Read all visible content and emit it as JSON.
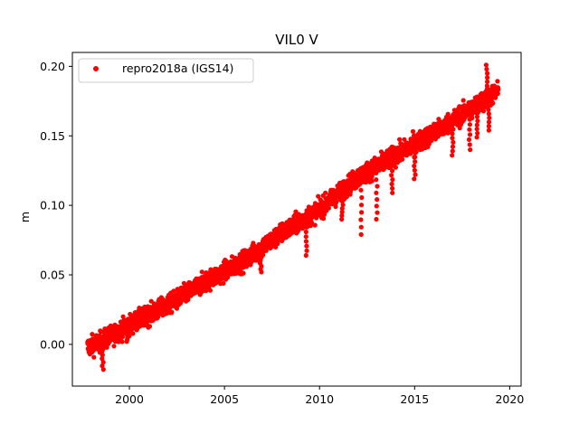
{
  "chart_data": {
    "type": "scatter",
    "title": "VIL0 V",
    "xlabel": "",
    "ylabel": "m",
    "xlim": [
      1997.0,
      2020.6
    ],
    "ylim": [
      -0.03,
      0.21
    ],
    "x_ticks": [
      2000,
      2005,
      2010,
      2015,
      2020
    ],
    "x_tick_labels": [
      "2000",
      "2005",
      "2010",
      "2015",
      "2020"
    ],
    "y_ticks": [
      0.0,
      0.05,
      0.1,
      0.15,
      0.2
    ],
    "y_tick_labels": [
      "0.00",
      "0.05",
      "0.10",
      "0.15",
      "0.20"
    ],
    "grid": false,
    "legend_position": "upper-left",
    "series": [
      {
        "name": "repro2018a (IGS14)",
        "color": "#ff0000",
        "marker": "circle",
        "trend": {
          "x": [
            1997.8,
            1998.5,
            2000.0,
            2002.0,
            2004.0,
            2006.0,
            2008.0,
            2010.0,
            2012.0,
            2014.0,
            2016.0,
            2018.0,
            2019.4
          ],
          "y": [
            -0.002,
            0.002,
            0.014,
            0.028,
            0.045,
            0.06,
            0.08,
            0.097,
            0.12,
            0.136,
            0.152,
            0.17,
            0.182
          ]
        },
        "scatter_width": 0.012,
        "outliers": [
          {
            "x": 1998.6,
            "y": -0.018
          },
          {
            "x": 1999.9,
            "y": 0.002
          },
          {
            "x": 2006.9,
            "y": 0.052
          },
          {
            "x": 2009.3,
            "y": 0.064
          },
          {
            "x": 2011.2,
            "y": 0.09
          },
          {
            "x": 2012.2,
            "y": 0.079
          },
          {
            "x": 2013.0,
            "y": 0.09
          },
          {
            "x": 2013.8,
            "y": 0.109
          },
          {
            "x": 2015.0,
            "y": 0.119
          },
          {
            "x": 2017.0,
            "y": 0.136
          },
          {
            "x": 2017.9,
            "y": 0.14
          },
          {
            "x": 2018.3,
            "y": 0.149
          },
          {
            "x": 2018.9,
            "y": 0.154
          },
          {
            "x": 2018.8,
            "y": 0.201
          }
        ]
      }
    ]
  }
}
